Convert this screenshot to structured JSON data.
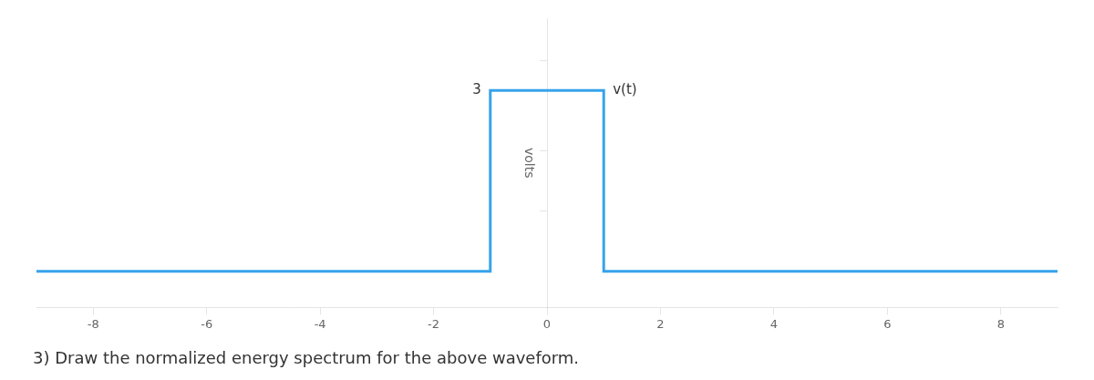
{
  "chart_data": {
    "type": "line",
    "x": [
      -9,
      -1,
      -1,
      1,
      1,
      9
    ],
    "values": [
      0,
      0,
      3,
      3,
      0,
      0
    ],
    "xlim": [
      -9,
      9
    ],
    "xticks": [
      -8,
      -6,
      -4,
      -2,
      0,
      2,
      4,
      6,
      8
    ],
    "ylim": [
      -0.6,
      4.2
    ],
    "yticks": [
      1,
      2,
      3.5
    ],
    "y_label": "volts",
    "grid": false,
    "tick_labels": "x",
    "annotations": [
      {
        "text": "3",
        "x": -1,
        "y": 3
      },
      {
        "text": "v(t)",
        "x": 1,
        "y": 3
      },
      {
        "text": "3) Draw the normalized energy spectrum for the above waveform."
      }
    ]
  }
}
